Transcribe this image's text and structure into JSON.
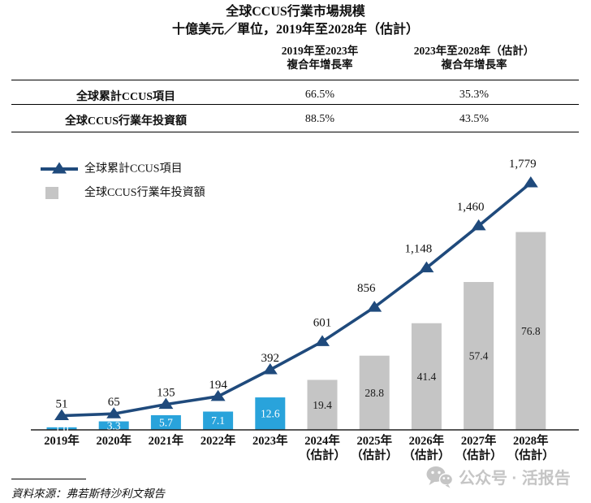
{
  "title": {
    "line1": "全球CCUS行業市場規模",
    "line2": "十億美元／單位，2019年至2028年（估計）"
  },
  "table": {
    "columns": [
      {
        "line1": "2019年至2023年",
        "line2": "複合年增長率"
      },
      {
        "line1": "2023年至2028年（估計）",
        "line2": "複合年增長率"
      }
    ],
    "rows": [
      {
        "label": "全球累計CCUS項目",
        "col1": "66.5%",
        "col2": "35.3%"
      },
      {
        "label": "全球CCUS行業年投資額",
        "col1": "88.5%",
        "col2": "43.5%"
      }
    ]
  },
  "chart_data": {
    "type": "combo",
    "title": "全球CCUS行業市場規模",
    "unit_note": "十億美元／單位",
    "categories": [
      [
        "2019年"
      ],
      [
        "2020年"
      ],
      [
        "2021年"
      ],
      [
        "2022年"
      ],
      [
        "2023年"
      ],
      [
        "2024年",
        "（估計）"
      ],
      [
        "2025年",
        "（估計）"
      ],
      [
        "2026年",
        "（估計）"
      ],
      [
        "2027年",
        "（估計）"
      ],
      [
        "2028年",
        "（估計）"
      ]
    ],
    "estimate_start_index": 5,
    "grid": false,
    "legend_position": "top-left",
    "series": [
      {
        "name": "全球累計CCUS項目",
        "type": "line",
        "color": "#1F4A7C",
        "values": [
          51,
          65,
          135,
          194,
          392,
          601,
          856,
          1148,
          1460,
          1779
        ],
        "labels": [
          "51",
          "65",
          "135",
          "194",
          "392",
          "601",
          "856",
          "1,148",
          "1,460",
          "1,779"
        ],
        "ylim": [
          0,
          1900
        ]
      },
      {
        "name": "全球CCUS行業年投資額",
        "type": "bar",
        "color_actual": "#29A3DB",
        "color_estimate": "#C5C5C5",
        "values": [
          1.0,
          3.3,
          5.7,
          7.1,
          12.6,
          19.4,
          28.8,
          41.4,
          57.4,
          76.8
        ],
        "labels": [
          "1.0",
          "3.3",
          "5.7",
          "7.1",
          "12.6",
          "19.4",
          "28.8",
          "41.4",
          "57.4",
          "76.8"
        ],
        "ylim": [
          0,
          85
        ]
      }
    ]
  },
  "source": {
    "text": "資料來源：弗若斯特沙利文報告"
  },
  "watermark": {
    "icon": "wechat-icon",
    "text": "公众号 · 活报告",
    "color": "#C5C5C5"
  }
}
